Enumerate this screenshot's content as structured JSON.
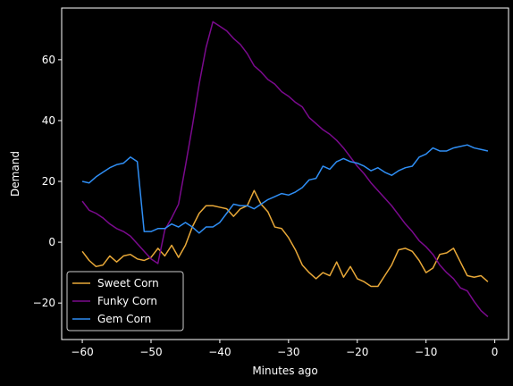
{
  "chart_data": {
    "type": "line",
    "title": "",
    "xlabel": "Minutes ago",
    "ylabel": "Demand",
    "xlim": [
      -63,
      2
    ],
    "ylim": [
      -32,
      77
    ],
    "xticks": [
      -60,
      -50,
      -40,
      -30,
      -20,
      -10,
      0
    ],
    "yticks": [
      -20,
      0,
      20,
      40,
      60
    ],
    "xtick_labels": [
      "−60",
      "−50",
      "−40",
      "−30",
      "−20",
      "−10",
      "0"
    ],
    "ytick_labels": [
      "−20",
      "0",
      "20",
      "40",
      "60"
    ],
    "grid": false,
    "legend_position": "lower-left",
    "background": "#000000",
    "foreground": "#ffffff",
    "x": [
      -60,
      -59,
      -58,
      -57,
      -56,
      -55,
      -54,
      -53,
      -52,
      -51,
      -50,
      -49,
      -48,
      -47,
      -46,
      -45,
      -44,
      -43,
      -42,
      -41,
      -40,
      -39,
      -38,
      -37,
      -36,
      -35,
      -34,
      -33,
      -32,
      -31,
      -30,
      -29,
      -28,
      -27,
      -26,
      -25,
      -24,
      -23,
      -22,
      -21,
      -20,
      -19,
      -18,
      -17,
      -16,
      -15,
      -14,
      -13,
      -12,
      -11,
      -10,
      -9,
      -8,
      -7,
      -6,
      -5,
      -4,
      -3,
      -2,
      -1
    ],
    "series": [
      {
        "name": "Sweet Corn",
        "color": "#e8a838",
        "values": [
          -3,
          -6,
          -8,
          -7.5,
          -4.5,
          -6.5,
          -4.5,
          -4,
          -5.5,
          -6,
          -5,
          -2,
          -4.5,
          -1,
          -5,
          -1,
          5,
          9.5,
          12,
          12,
          11.5,
          11,
          8.5,
          11,
          12,
          17,
          12.5,
          10,
          5,
          4.5,
          1.5,
          -2.5,
          -7.5,
          -10,
          -12,
          -10,
          -11,
          -6.5,
          -11.5,
          -8,
          -12,
          -13,
          -14.5,
          -14.5,
          -11,
          -7.5,
          -2.5,
          -2,
          -3,
          -6,
          -10,
          -8.5,
          -4,
          -3.5,
          -2,
          -6.5,
          -11,
          -11.5,
          -11,
          -13
        ]
      },
      {
        "name": "Funky Corn",
        "color": "#7b0a8e",
        "values": [
          13.5,
          10.5,
          9.5,
          8,
          6,
          4.5,
          3.5,
          2,
          -0.5,
          -3,
          -5.5,
          -7,
          4,
          8,
          12.5,
          25,
          38,
          52,
          64,
          72.5,
          71,
          69.5,
          67,
          65,
          62,
          58,
          56,
          53.5,
          52,
          49.5,
          48,
          46,
          44.5,
          41,
          39,
          37,
          35.5,
          33.5,
          31,
          28,
          25,
          22.5,
          19.5,
          17,
          14.5,
          12,
          9,
          6,
          3.5,
          0.5,
          -1.5,
          -4,
          -7.5,
          -10,
          -12,
          -15,
          -16,
          -19.5,
          -22.5,
          -24.5
        ]
      },
      {
        "name": "Gem Corn",
        "color": "#2f8ef4",
        "values": [
          20,
          19.5,
          21.5,
          23,
          24.5,
          25.5,
          26,
          28,
          26.5,
          3.5,
          3.5,
          4.5,
          4.5,
          6,
          5,
          6.5,
          5,
          3,
          5,
          5,
          6.5,
          9.5,
          12.5,
          12,
          12,
          11,
          12.5,
          14,
          15,
          16,
          15.5,
          16.5,
          18,
          20.5,
          21,
          25,
          24,
          26.5,
          27.5,
          26.5,
          26,
          25,
          23.5,
          24.5,
          23,
          22,
          23.5,
          24.5,
          25,
          28,
          29,
          31,
          30,
          30,
          31,
          31.5,
          32,
          31,
          30.5,
          30
        ]
      }
    ]
  }
}
